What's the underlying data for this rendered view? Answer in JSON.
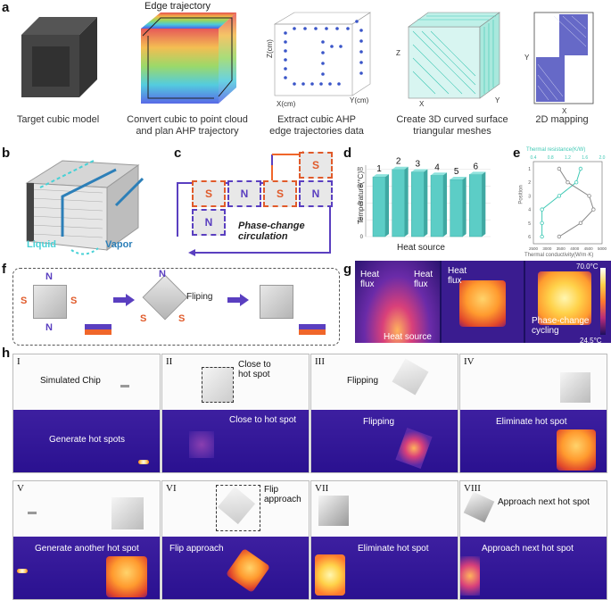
{
  "panel_labels": {
    "a": "a",
    "b": "b",
    "c": "c",
    "d": "d",
    "e": "e",
    "f": "f",
    "g": "g",
    "h": "h"
  },
  "a": {
    "edge_trajectory": "Edge trajectory",
    "captions": [
      "Target cubic model",
      "Convert cubic to point cloud\nand plan AHP trajectory",
      "Extract cubic AHP\nedge trajectories data",
      "Create 3D curved surface\ntriangular meshes",
      "2D mapping"
    ],
    "axis_z_cm": "Z(cm)",
    "axis_x_cm": "X(cm)",
    "axis_y_cm": "Y(cm)",
    "axis_z": "Z",
    "axis_x": "X",
    "axis_y": "Y",
    "map_y": "Y",
    "map_x": "X"
  },
  "b": {
    "liquid": "Liquid",
    "vapor": "Vapor"
  },
  "c": {
    "cells": [
      "S",
      "N",
      "S",
      "N",
      "S",
      "N"
    ],
    "caption": "Phase-change\ncirculation"
  },
  "d": {
    "ylabel": "Temperature(°C)",
    "source_label": "Heat source",
    "chart_data": {
      "type": "bar",
      "categories": [
        "1",
        "2",
        "3",
        "4",
        "5",
        "6"
      ],
      "values": [
        71,
        80,
        77,
        73,
        68,
        74
      ],
      "ylabel": "Temperature(°C)",
      "yticks": [
        "0",
        "20",
        "40",
        "60",
        "80"
      ],
      "ylim": [
        0,
        85
      ]
    }
  },
  "e": {
    "top_label": "Thermal resistance(K/W)",
    "top_ticks": [
      "0.4",
      "0.8",
      "1.2",
      "1.6",
      "2.0"
    ],
    "bottom_label": "Thermal conductivity(W/m·K)",
    "bottom_ticks": [
      "2500",
      "3000",
      "3500",
      "4000",
      "4500",
      "5000"
    ],
    "ylabel": "Position",
    "yticks": [
      "1",
      "2",
      "3",
      "4",
      "5",
      "6"
    ],
    "chart_data": {
      "type": "line",
      "series": [
        {
          "y": [
            1,
            2,
            3,
            4,
            5,
            6
          ],
          "values": [
            1.5,
            1.4,
            1.0,
            0.6,
            0.6,
            0.6
          ]
        },
        {
          "y": [
            1,
            2,
            3,
            4,
            5,
            6
          ],
          "values": [
            1.0,
            1.2,
            1.7,
            1.8,
            1.5,
            1.0
          ]
        }
      ],
      "colors": [
        "#40c9b5",
        "#888888"
      ]
    }
  },
  "f": {
    "S": "S",
    "N": "N",
    "flip": "Fliping"
  },
  "g": {
    "heat_flux": "Heat\nflux",
    "heat_source": "Heat source",
    "phase": "Phase-change\ncycling",
    "tmax": "70.0°C",
    "tmin": "24.5°C"
  },
  "h": {
    "frames": [
      {
        "roman": "I",
        "top_text": "Simulated Chip",
        "bottom_text": "Generate hot spots"
      },
      {
        "roman": "II",
        "top_text": "Close to\nhot spot",
        "bottom_text": "Close to hot spot"
      },
      {
        "roman": "III",
        "top_text": "Flipping",
        "bottom_text": "Flipping"
      },
      {
        "roman": "IV",
        "top_text": "",
        "bottom_text": "Eliminate hot spot"
      },
      {
        "roman": "V",
        "top_text": "",
        "bottom_text": "Generate another hot spot"
      },
      {
        "roman": "VI",
        "top_text": "Flip\napproach",
        "bottom_text": "Flip approach"
      },
      {
        "roman": "VII",
        "top_text": "",
        "bottom_text": "Eliminate hot spot"
      },
      {
        "roman": "VIII",
        "top_text": "Approach next hot spot",
        "bottom_text": "Approach next hot spot"
      }
    ]
  },
  "colors": {
    "S": "#e05a2a",
    "N": "#5a3fc0",
    "teal": "#40c9b5",
    "arrow_blue": "#2c7fb8",
    "arrow_orange": "#f0662a",
    "arrow_purple": "#5a3fc0"
  }
}
